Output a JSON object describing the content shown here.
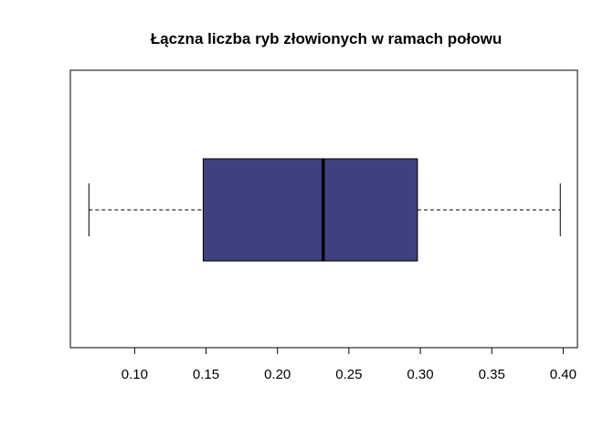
{
  "chart_data": {
    "type": "boxplot",
    "orientation": "horizontal",
    "title": "Łączna liczba ryb złowionych w ramach połowu",
    "xlabel": "",
    "ylabel": "",
    "xlim": [
      0.055,
      0.41
    ],
    "xticks": [
      0.1,
      0.15,
      0.2,
      0.25,
      0.3,
      0.35,
      0.4
    ],
    "tick_labels": [
      "0.10",
      "0.15",
      "0.20",
      "0.25",
      "0.30",
      "0.35",
      "0.40"
    ],
    "box": {
      "min": 0.068,
      "q1": 0.148,
      "median": 0.232,
      "q3": 0.298,
      "max": 0.398
    },
    "colors": {
      "box_fill": "#40407e",
      "line": "#000000"
    },
    "grid": false
  }
}
